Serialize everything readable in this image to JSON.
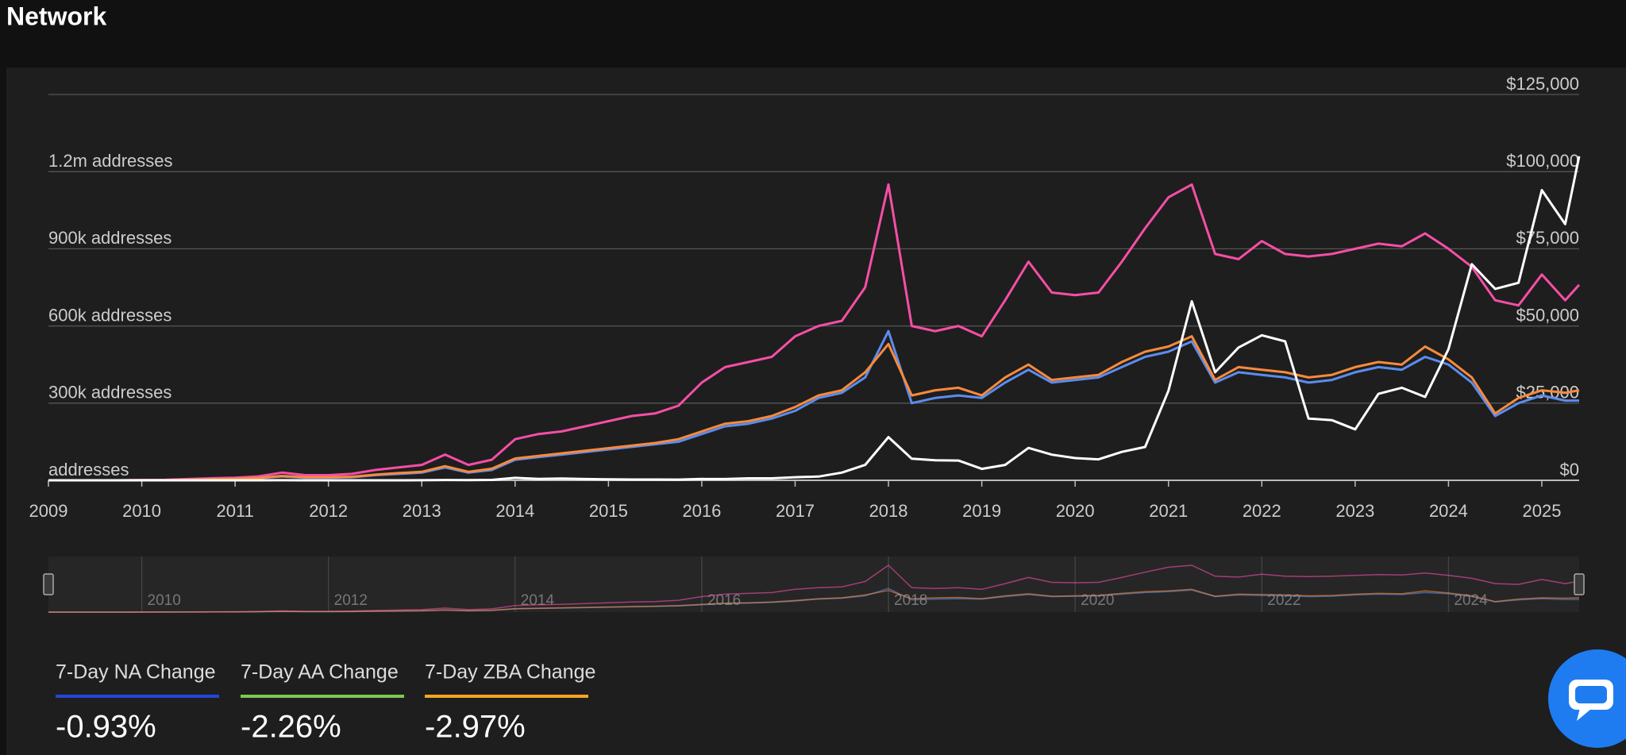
{
  "header": {
    "title": "Network"
  },
  "chart_data": {
    "type": "line",
    "x": [
      2009,
      2009.25,
      2009.5,
      2009.75,
      2010,
      2010.25,
      2010.5,
      2010.75,
      2011,
      2011.25,
      2011.5,
      2011.75,
      2012,
      2012.25,
      2012.5,
      2012.75,
      2013,
      2013.25,
      2013.5,
      2013.75,
      2014,
      2014.25,
      2014.5,
      2014.75,
      2015,
      2015.25,
      2015.5,
      2015.75,
      2016,
      2016.25,
      2016.5,
      2016.75,
      2017,
      2017.25,
      2017.5,
      2017.75,
      2018,
      2018.25,
      2018.5,
      2018.75,
      2019,
      2019.25,
      2019.5,
      2019.75,
      2020,
      2020.25,
      2020.5,
      2020.75,
      2021,
      2021.25,
      2021.5,
      2021.75,
      2022,
      2022.25,
      2022.5,
      2022.75,
      2023,
      2023.25,
      2023.5,
      2023.75,
      2024,
      2024.25,
      2024.5,
      2024.75,
      2025,
      2025.25,
      2025.4
    ],
    "series": [
      {
        "color": "#f64ea6",
        "values": [
          0,
          0,
          0,
          0,
          1000,
          2000,
          5000,
          8000,
          10000,
          15000,
          30000,
          20000,
          20000,
          25000,
          40000,
          50000,
          60000,
          100000,
          60000,
          80000,
          160000,
          180000,
          190000,
          210000,
          230000,
          250000,
          260000,
          290000,
          380000,
          440000,
          460000,
          480000,
          560000,
          600000,
          620000,
          750000,
          1150000,
          600000,
          580000,
          600000,
          560000,
          700000,
          850000,
          730000,
          720000,
          730000,
          850000,
          980000,
          1100000,
          1150000,
          880000,
          860000,
          930000,
          880000,
          870000,
          880000,
          900000,
          920000,
          910000,
          960000,
          900000,
          830000,
          700000,
          680000,
          800000,
          700000,
          760000
        ]
      },
      {
        "color": "#5b8def",
        "values": [
          0,
          0,
          0,
          0,
          500,
          1000,
          2000,
          4000,
          5000,
          8000,
          15000,
          10000,
          10000,
          12000,
          20000,
          25000,
          30000,
          50000,
          30000,
          40000,
          80000,
          90000,
          100000,
          110000,
          120000,
          130000,
          140000,
          150000,
          180000,
          210000,
          220000,
          240000,
          270000,
          320000,
          340000,
          400000,
          580000,
          300000,
          320000,
          330000,
          320000,
          380000,
          430000,
          380000,
          390000,
          400000,
          440000,
          480000,
          500000,
          540000,
          380000,
          420000,
          410000,
          400000,
          380000,
          390000,
          420000,
          440000,
          430000,
          480000,
          450000,
          380000,
          250000,
          300000,
          330000,
          310000,
          310000
        ]
      },
      {
        "color": "#f98a3c",
        "values": [
          0,
          0,
          0,
          0,
          500,
          1000,
          2000,
          4000,
          6000,
          9000,
          17000,
          12000,
          12000,
          14000,
          22000,
          28000,
          33000,
          55000,
          33000,
          45000,
          85000,
          95000,
          105000,
          115000,
          125000,
          135000,
          145000,
          160000,
          190000,
          220000,
          230000,
          250000,
          285000,
          330000,
          350000,
          420000,
          530000,
          330000,
          350000,
          360000,
          330000,
          400000,
          450000,
          390000,
          400000,
          410000,
          460000,
          500000,
          520000,
          560000,
          390000,
          440000,
          430000,
          420000,
          400000,
          410000,
          440000,
          460000,
          450000,
          520000,
          470000,
          400000,
          260000,
          320000,
          350000,
          340000,
          350000
        ]
      },
      {
        "color": "#ffffff",
        "axis": "y2",
        "values": [
          0,
          0,
          0,
          0,
          0,
          0,
          0,
          0,
          0,
          10,
          15,
          3,
          5,
          5,
          7,
          12,
          13,
          100,
          90,
          130,
          800,
          450,
          600,
          400,
          300,
          250,
          270,
          240,
          430,
          420,
          650,
          650,
          1000,
          1200,
          2500,
          5000,
          14000,
          7000,
          6500,
          6400,
          3700,
          5000,
          10500,
          8300,
          7200,
          6800,
          9200,
          10800,
          29000,
          58000,
          35000,
          43000,
          47000,
          45000,
          20000,
          19500,
          16500,
          28000,
          30000,
          27000,
          42500,
          70000,
          62000,
          64000,
          94000,
          83000,
          105000
        ]
      }
    ],
    "xlim": [
      2009,
      2025.4
    ],
    "xticks": [
      2009,
      2010,
      2011,
      2012,
      2013,
      2014,
      2015,
      2016,
      2017,
      2018,
      2019,
      2020,
      2021,
      2022,
      2023,
      2024,
      2025
    ],
    "ylim": [
      0,
      1500000
    ],
    "yticks": [
      {
        "value": 0,
        "label": "addresses"
      },
      {
        "value": 300000,
        "label": "300k addresses"
      },
      {
        "value": 600000,
        "label": "600k addresses"
      },
      {
        "value": 900000,
        "label": "900k addresses"
      },
      {
        "value": 1200000,
        "label": "1.2m addresses"
      }
    ],
    "y2lim": [
      0,
      125000
    ],
    "y2ticks": [
      {
        "value": 0,
        "label": "$0"
      },
      {
        "value": 25000,
        "label": "$25,000"
      },
      {
        "value": 50000,
        "label": "$50,000"
      },
      {
        "value": 75000,
        "label": "$75,000"
      },
      {
        "value": 100000,
        "label": "$100,000"
      },
      {
        "value": 125000,
        "label": "$125,000"
      }
    ],
    "grid": true
  },
  "navigator": {
    "ticks": [
      2010,
      2012,
      2014,
      2016,
      2018,
      2020,
      2022,
      2024
    ]
  },
  "stats": [
    {
      "label": "7-Day NA Change",
      "value": "-0.93%",
      "color": "#2346d8"
    },
    {
      "label": "7-Day AA Change",
      "value": "-2.26%",
      "color": "#7ec850"
    },
    {
      "label": "7-Day ZBA Change",
      "value": "-2.97%",
      "color": "#f5a623"
    }
  ]
}
